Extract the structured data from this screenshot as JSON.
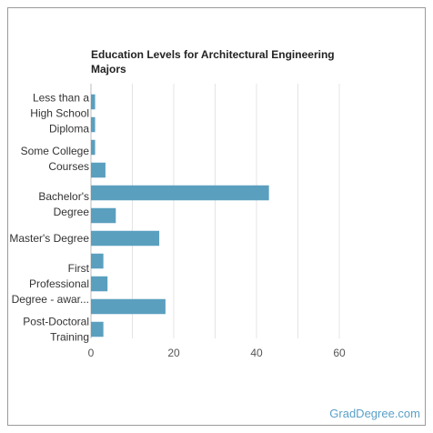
{
  "chart_data": {
    "type": "bar",
    "orientation": "horizontal",
    "title": "Education Levels for Architectural Engineering Majors",
    "label_groups": [
      {
        "lines": [
          "Less than a",
          "High School",
          "Diploma"
        ],
        "bars": [
          0,
          1
        ]
      },
      {
        "lines": [
          "Some College",
          "Courses"
        ],
        "bars": [
          2,
          3
        ]
      },
      {
        "lines": [
          "Bachelor's",
          "Degree"
        ],
        "bars": [
          4,
          5
        ]
      },
      {
        "lines": [
          "Master's Degree"
        ],
        "bars": [
          6
        ]
      },
      {
        "lines": [
          "First",
          "Professional",
          "Degree - awar..."
        ],
        "bars": [
          7,
          8,
          9
        ]
      },
      {
        "lines": [
          "Post-Doctoral",
          "Training"
        ],
        "bars": [
          10
        ]
      }
    ],
    "values": [
      1,
      1,
      1,
      3.5,
      43,
      6,
      16.5,
      3,
      4,
      18,
      3
    ],
    "xlim": [
      0,
      60
    ],
    "xticks": [
      0,
      20,
      40,
      60
    ],
    "bar_color": "#5b9fbf",
    "grid": true
  },
  "footer": {
    "watermark": "GradDegree.com"
  }
}
